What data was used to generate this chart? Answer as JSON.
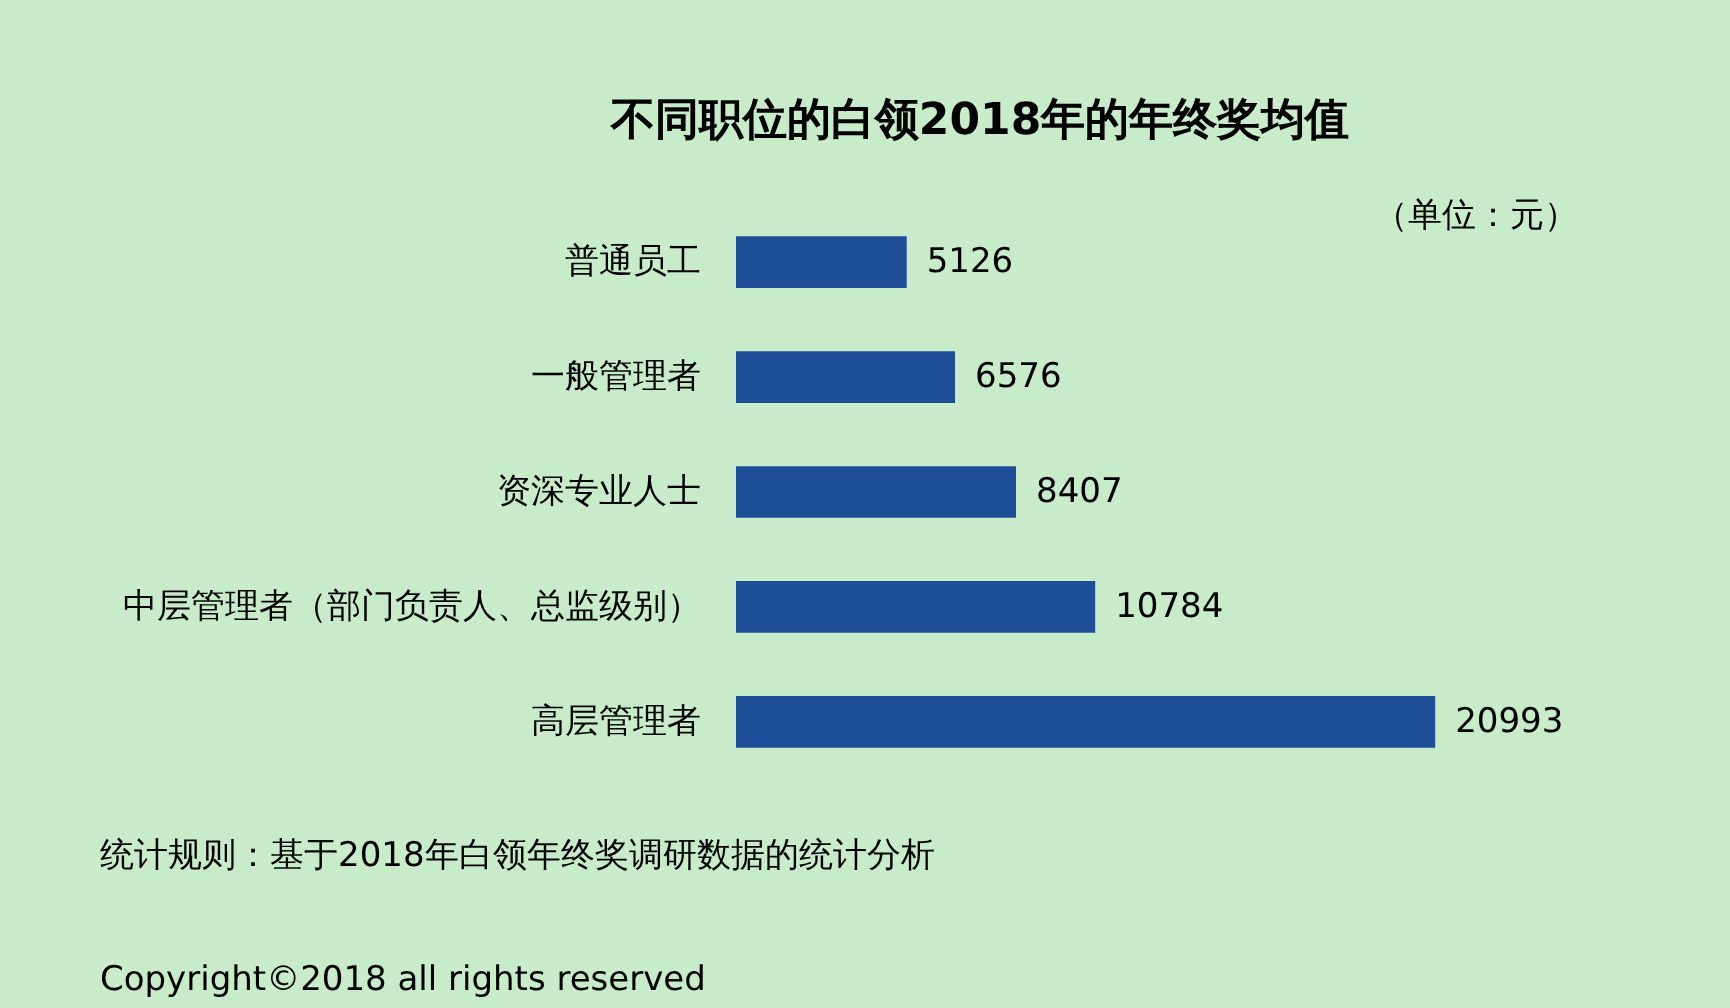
{
  "chart_data": {
    "type": "bar",
    "orientation": "horizontal",
    "title": "不同职位的白领2018年的年终奖均值",
    "categories": [
      "普通员工",
      "一般管理者",
      "资深专业人士",
      "中层管理者（部门负责人、总监级别）",
      "高层管理者"
    ],
    "values": [
      5126,
      6576,
      8407,
      10784,
      20993
    ],
    "color": "#1f4e99",
    "data_labels": true,
    "grid": false,
    "annotations": [
      "（单位：元）",
      "统计规则：基于2018年白领年终奖调研数据的统计分析",
      "Copyright©2018 all rights reserved"
    ]
  }
}
